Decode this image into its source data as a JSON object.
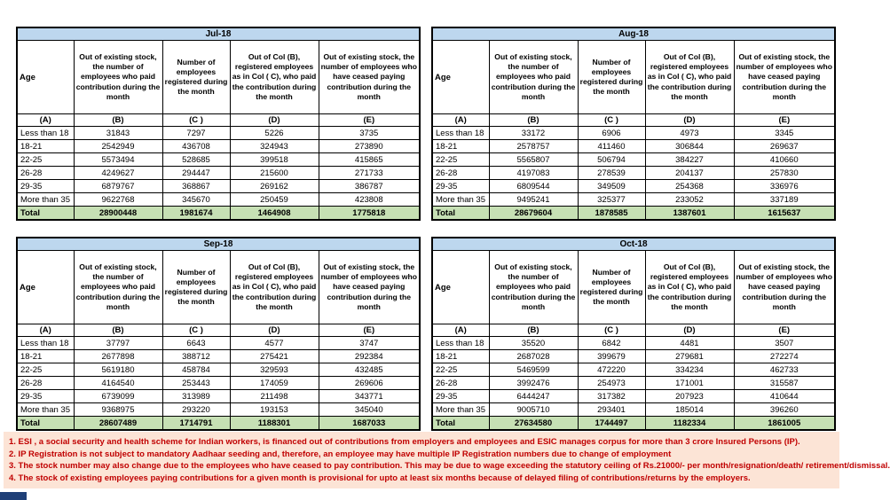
{
  "columns": {
    "age_label": "Age",
    "col_letters": [
      "(A)",
      "(B)",
      "(C )",
      "(D)",
      "(E)"
    ],
    "headers": [
      "Out of existing stock, the number of employees who paid contribution during the month",
      "Number of employees registered during the month",
      "Out of Col (B), registered employees as in Col ( C), who paid the contribution during the month",
      "Out of existing stock, the number of  employees who have ceased paying contribution during the month"
    ]
  },
  "tables": [
    {
      "month": "Jul-18",
      "rows": [
        {
          "age": "Less than 18",
          "values": [
            31843,
            7297,
            5226,
            3735
          ]
        },
        {
          "age": "18-21",
          "values": [
            2542949,
            436708,
            324943,
            273890
          ]
        },
        {
          "age": "22-25",
          "values": [
            5573494,
            528685,
            399518,
            415865
          ]
        },
        {
          "age": "26-28",
          "values": [
            4249627,
            294447,
            215600,
            271733
          ]
        },
        {
          "age": "29-35",
          "values": [
            6879767,
            368867,
            269162,
            386787
          ]
        },
        {
          "age": "More than 35",
          "values": [
            9622768,
            345670,
            250459,
            423808
          ]
        }
      ],
      "total": {
        "label": "Total",
        "values": [
          28900448,
          1981674,
          1464908,
          1775818
        ]
      }
    },
    {
      "month": "Aug-18",
      "rows": [
        {
          "age": "Less than 18",
          "values": [
            33172,
            6906,
            4973,
            3345
          ]
        },
        {
          "age": "18-21",
          "values": [
            2578757,
            411460,
            306844,
            269637
          ]
        },
        {
          "age": "22-25",
          "values": [
            5565807,
            506794,
            384227,
            410660
          ]
        },
        {
          "age": "26-28",
          "values": [
            4197083,
            278539,
            204137,
            257830
          ]
        },
        {
          "age": "29-35",
          "values": [
            6809544,
            349509,
            254368,
            336976
          ]
        },
        {
          "age": "More than 35",
          "values": [
            9495241,
            325377,
            233052,
            337189
          ]
        }
      ],
      "total": {
        "label": "Total",
        "values": [
          28679604,
          1878585,
          1387601,
          1615637
        ]
      }
    },
    {
      "month": "Sep-18",
      "rows": [
        {
          "age": "Less than 18",
          "values": [
            37797,
            6643,
            4577,
            3747
          ]
        },
        {
          "age": "18-21",
          "values": [
            2677898,
            388712,
            275421,
            292384
          ]
        },
        {
          "age": "22-25",
          "values": [
            5619180,
            458784,
            329593,
            432485
          ]
        },
        {
          "age": "26-28",
          "values": [
            4164540,
            253443,
            174059,
            269606
          ]
        },
        {
          "age": "29-35",
          "values": [
            6739099,
            313989,
            211498,
            343771
          ]
        },
        {
          "age": "More than 35",
          "values": [
            9368975,
            293220,
            193153,
            345040
          ]
        }
      ],
      "total": {
        "label": "Total",
        "values": [
          28607489,
          1714791,
          1188301,
          1687033
        ]
      }
    },
    {
      "month": "Oct-18",
      "rows": [
        {
          "age": "Less than 18",
          "values": [
            35520,
            6842,
            4481,
            3507
          ]
        },
        {
          "age": "18-21",
          "values": [
            2687028,
            399679,
            279681,
            272274
          ]
        },
        {
          "age": "22-25",
          "values": [
            5469599,
            472220,
            334234,
            462733
          ]
        },
        {
          "age": "26-28",
          "values": [
            3992476,
            254973,
            171001,
            315587
          ]
        },
        {
          "age": "29-35",
          "values": [
            6444247,
            317382,
            207923,
            410644
          ]
        },
        {
          "age": "More than 35",
          "values": [
            9005710,
            293401,
            185014,
            396260
          ]
        }
      ],
      "total": {
        "label": "Total",
        "values": [
          27634580,
          1744497,
          1182334,
          1861005
        ]
      }
    }
  ],
  "notes": [
    "1. ESI , a social security and health scheme for Indian workers, is financed out of contributions from employers and employees and ESIC manages corpus for more than 3 crore Insured Persons (IP).",
    "2. IP Registration is not subject to mandatory Aadhaar seeding and, therefore, an employee may have multiple IP Registration numbers due to change of employment",
    "3. The stock number may also change due to the employees who have ceased to pay contribution. This may be  due to wage exceeding the statutory ceiling of  Rs.21000/- per month/resignation/death/ retirement/dismissal.",
    "4. The stock of existing employees paying contributions for a given month is provisional for upto at least six months because of delayed filing of contributions/returns by the employers."
  ],
  "colors": {
    "month_header_bg": "#BDD7EE",
    "total_row_bg": "#C6E0B4",
    "notes_bg": "#FCE4D6",
    "notes_text": "#C00000",
    "sheet_tab": "#1F3F77"
  }
}
